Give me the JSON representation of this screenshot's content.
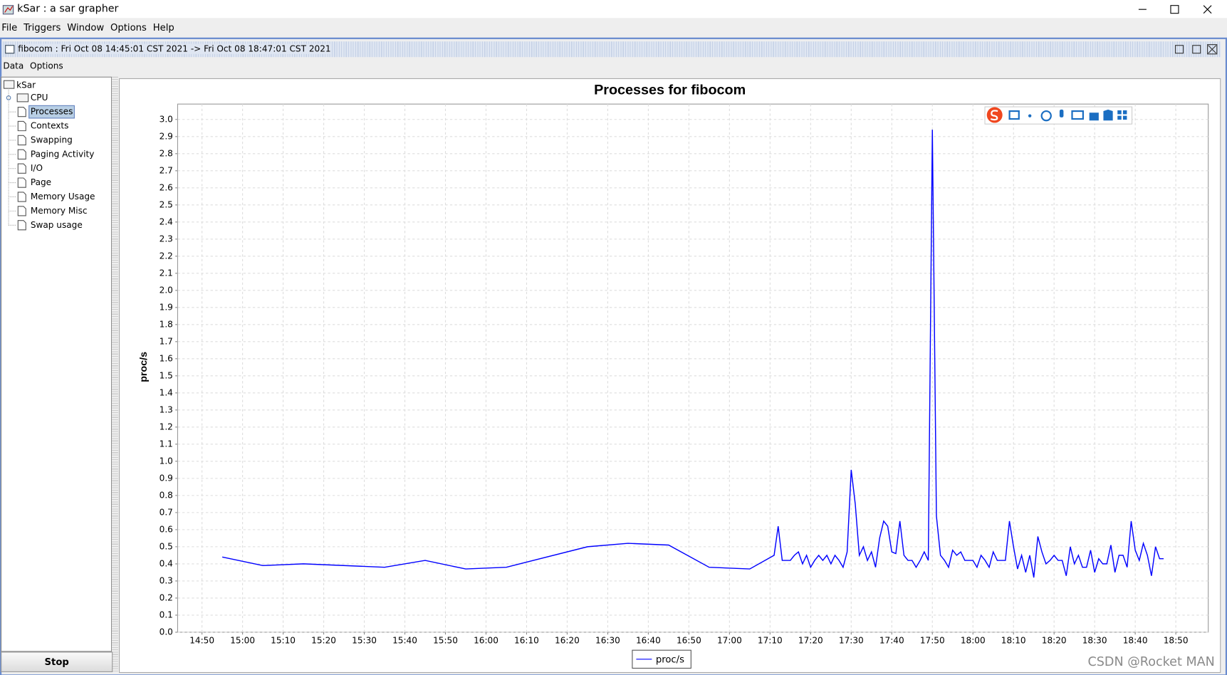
{
  "window": {
    "title": "kSar : a sar grapher",
    "menu": [
      "File",
      "Triggers",
      "Window",
      "Options",
      "Help"
    ]
  },
  "frame": {
    "title": "fibocom : Fri Oct 08 14:45:01 CST 2021 -> Fri Oct 08 18:47:01 CST 2021",
    "menu": [
      "Data",
      "Options"
    ]
  },
  "tree": {
    "root": "kSar",
    "folder": "CPU",
    "items": [
      "Processes",
      "Contexts",
      "Swapping",
      "Paging Activity",
      "I/O",
      "Page",
      "Memory Usage",
      "Memory Misc",
      "Swap usage"
    ],
    "selected": "Processes"
  },
  "button": "Stop",
  "watermark": "CSDN @Rocket MAN",
  "chart_data": {
    "type": "line",
    "title": "Processes for fibocom",
    "ylabel": "proc/s",
    "x": [
      "14:55",
      "15:05",
      "15:15",
      "15:35",
      "15:45",
      "15:55",
      "16:05",
      "16:25",
      "16:35",
      "16:45",
      "16:55",
      "17:05",
      "17:11",
      "17:12",
      "17:13",
      "17:14",
      "17:15",
      "17:16",
      "17:17",
      "17:18",
      "17:19",
      "17:20",
      "17:21",
      "17:22",
      "17:23",
      "17:24",
      "17:25",
      "17:26",
      "17:27",
      "17:28",
      "17:29",
      "17:30",
      "17:31",
      "17:32",
      "17:33",
      "17:34",
      "17:35",
      "17:36",
      "17:37",
      "17:38",
      "17:39",
      "17:40",
      "17:41",
      "17:42",
      "17:43",
      "17:44",
      "17:45",
      "17:46",
      "17:47",
      "17:48",
      "17:49",
      "17:50",
      "17:51",
      "17:52",
      "17:53",
      "17:54",
      "17:55",
      "17:56",
      "17:57",
      "17:58",
      "17:59",
      "18:00",
      "18:01",
      "18:02",
      "18:03",
      "18:04",
      "18:05",
      "18:06",
      "18:07",
      "18:08",
      "18:09",
      "18:10",
      "18:11",
      "18:12",
      "18:13",
      "18:14",
      "18:15",
      "18:16",
      "18:17",
      "18:18",
      "18:19",
      "18:20",
      "18:21",
      "18:22",
      "18:23",
      "18:24",
      "18:25",
      "18:26",
      "18:27",
      "18:28",
      "18:29",
      "18:30",
      "18:31",
      "18:32",
      "18:33",
      "18:34",
      "18:35",
      "18:36",
      "18:37",
      "18:38",
      "18:39",
      "18:40",
      "18:41",
      "18:42",
      "18:43",
      "18:44",
      "18:45",
      "18:46",
      "18:47"
    ],
    "series": [
      {
        "name": "proc/s",
        "color": "#0000ff",
        "values": [
          0.44,
          0.39,
          0.4,
          0.38,
          0.42,
          0.37,
          0.38,
          0.5,
          0.52,
          0.51,
          0.38,
          0.37,
          0.45,
          0.62,
          0.42,
          0.42,
          0.42,
          0.45,
          0.47,
          0.4,
          0.45,
          0.38,
          0.42,
          0.45,
          0.42,
          0.45,
          0.4,
          0.45,
          0.42,
          0.38,
          0.47,
          0.95,
          0.75,
          0.45,
          0.5,
          0.42,
          0.47,
          0.38,
          0.55,
          0.65,
          0.62,
          0.47,
          0.46,
          0.65,
          0.45,
          0.42,
          0.42,
          0.38,
          0.42,
          0.47,
          0.42,
          2.94,
          0.68,
          0.45,
          0.42,
          0.38,
          0.48,
          0.45,
          0.47,
          0.42,
          0.42,
          0.42,
          0.38,
          0.45,
          0.42,
          0.38,
          0.47,
          0.42,
          0.42,
          0.42,
          0.65,
          0.5,
          0.37,
          0.45,
          0.35,
          0.45,
          0.32,
          0.56,
          0.47,
          0.4,
          0.42,
          0.45,
          0.42,
          0.42,
          0.33,
          0.5,
          0.4,
          0.45,
          0.38,
          0.38,
          0.48,
          0.35,
          0.43,
          0.4,
          0.4,
          0.51,
          0.35,
          0.45,
          0.45,
          0.38,
          0.65,
          0.48,
          0.42,
          0.52,
          0.45,
          0.33,
          0.5,
          0.43,
          0.43
        ]
      }
    ],
    "xlim": [
      "14:44",
      "18:58"
    ],
    "xticks": [
      "14:50",
      "15:00",
      "15:10",
      "15:20",
      "15:30",
      "15:40",
      "15:50",
      "16:00",
      "16:10",
      "16:20",
      "16:30",
      "16:40",
      "16:50",
      "17:00",
      "17:10",
      "17:20",
      "17:30",
      "17:40",
      "17:50",
      "18:00",
      "18:10",
      "18:20",
      "18:30",
      "18:40",
      "18:50"
    ],
    "ylim": [
      0,
      3.09
    ],
    "yticks": [
      {
        "value": 0,
        "label": "0.0"
      },
      0.1,
      0.2,
      0.3,
      0.4,
      0.5,
      0.6,
      0.7,
      0.8,
      0.9,
      {
        "value": 1,
        "label": "1.0"
      },
      1.1,
      1.2,
      1.3,
      1.4,
      1.5,
      1.6,
      1.7,
      1.8,
      1.9,
      {
        "value": 2,
        "label": "2.0"
      },
      2.1,
      2.2,
      2.3,
      2.4,
      2.5,
      2.6,
      2.7,
      2.8,
      2.9,
      {
        "value": 3,
        "label": "3.0"
      }
    ],
    "grid": true,
    "legend": "bottom"
  }
}
